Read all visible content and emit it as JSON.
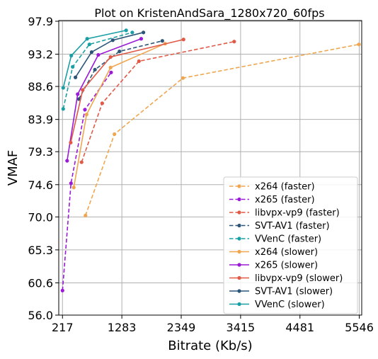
{
  "chart_data": {
    "type": "line",
    "title": "Plot on KristenAndSara_1280x720_60fps",
    "xlabel": "Bitrate (Kb/s)",
    "ylabel": "VMAF",
    "xlim": [
      150,
      5590
    ],
    "ylim": [
      56.0,
      98.0
    ],
    "xticks": [
      217,
      1283,
      2349,
      3415,
      4481,
      5546
    ],
    "xtick_labels": [
      "217",
      "1283",
      "2349",
      "3415",
      "4481",
      "5546"
    ],
    "yticks": [
      56.0,
      60.6,
      65.3,
      70.0,
      74.6,
      79.3,
      83.9,
      88.6,
      93.2,
      97.9
    ],
    "ytick_labels": [
      "56.0",
      "60.6",
      "65.3",
      "70.0",
      "74.6",
      "79.3",
      "83.9",
      "88.6",
      "93.2",
      "97.9"
    ],
    "grid": true,
    "legend_position": "bottom-right",
    "series": [
      {
        "name": "x264 (faster)",
        "color": "#f0a64f",
        "dash": true,
        "x": [
          630,
          1150,
          2380,
          5540
        ],
        "y": [
          70.2,
          81.8,
          89.8,
          94.6
        ]
      },
      {
        "name": "x265 (faster)",
        "color": "#9a1ad6",
        "dash": true,
        "x": [
          217,
          370,
          620,
          1090
        ],
        "y": [
          59.5,
          74.8,
          85.3,
          90.6
        ]
      },
      {
        "name": "libvpx-vp9 (faster)",
        "color": "#e05a47",
        "dash": true,
        "x": [
          560,
          930,
          1590,
          3300
        ],
        "y": [
          77.8,
          86.2,
          92.2,
          95.0
        ]
      },
      {
        "name": "SVT-AV1 (faster)",
        "color": "#2c5578",
        "dash": true,
        "x": [
          510,
          800,
          1240,
          2010
        ],
        "y": [
          86.8,
          91.0,
          93.6,
          95.1
        ]
      },
      {
        "name": "VVenC (faster)",
        "color": "#1a9fa5",
        "dash": true,
        "x": [
          230,
          400,
          700,
          1470
        ],
        "y": [
          85.4,
          91.4,
          94.6,
          96.3
        ]
      },
      {
        "name": "x264 (slower)",
        "color": "#f0a64f",
        "dash": false,
        "x": [
          420,
          650,
          1080,
          2060
        ],
        "y": [
          74.2,
          84.6,
          91.3,
          94.7
        ]
      },
      {
        "name": "x265 (slower)",
        "color": "#9a1ad6",
        "dash": false,
        "x": [
          300,
          490,
          860,
          1630
        ],
        "y": [
          78.0,
          87.5,
          93.1,
          95.4
        ]
      },
      {
        "name": "libvpx-vp9 (slower)",
        "color": "#e05a47",
        "dash": false,
        "x": [
          365,
          580,
          1080,
          2390
        ],
        "y": [
          80.6,
          88.1,
          92.8,
          95.3
        ]
      },
      {
        "name": "SVT-AV1 (slower)",
        "color": "#2c5578",
        "dash": false,
        "x": [
          450,
          740,
          1120,
          1670
        ],
        "y": [
          89.9,
          93.5,
          95.2,
          96.3
        ]
      },
      {
        "name": "VVenC (slower)",
        "color": "#1a9fa5",
        "dash": false,
        "x": [
          230,
          375,
          660,
          1360
        ],
        "y": [
          88.4,
          93.0,
          95.4,
          96.6
        ]
      }
    ]
  }
}
